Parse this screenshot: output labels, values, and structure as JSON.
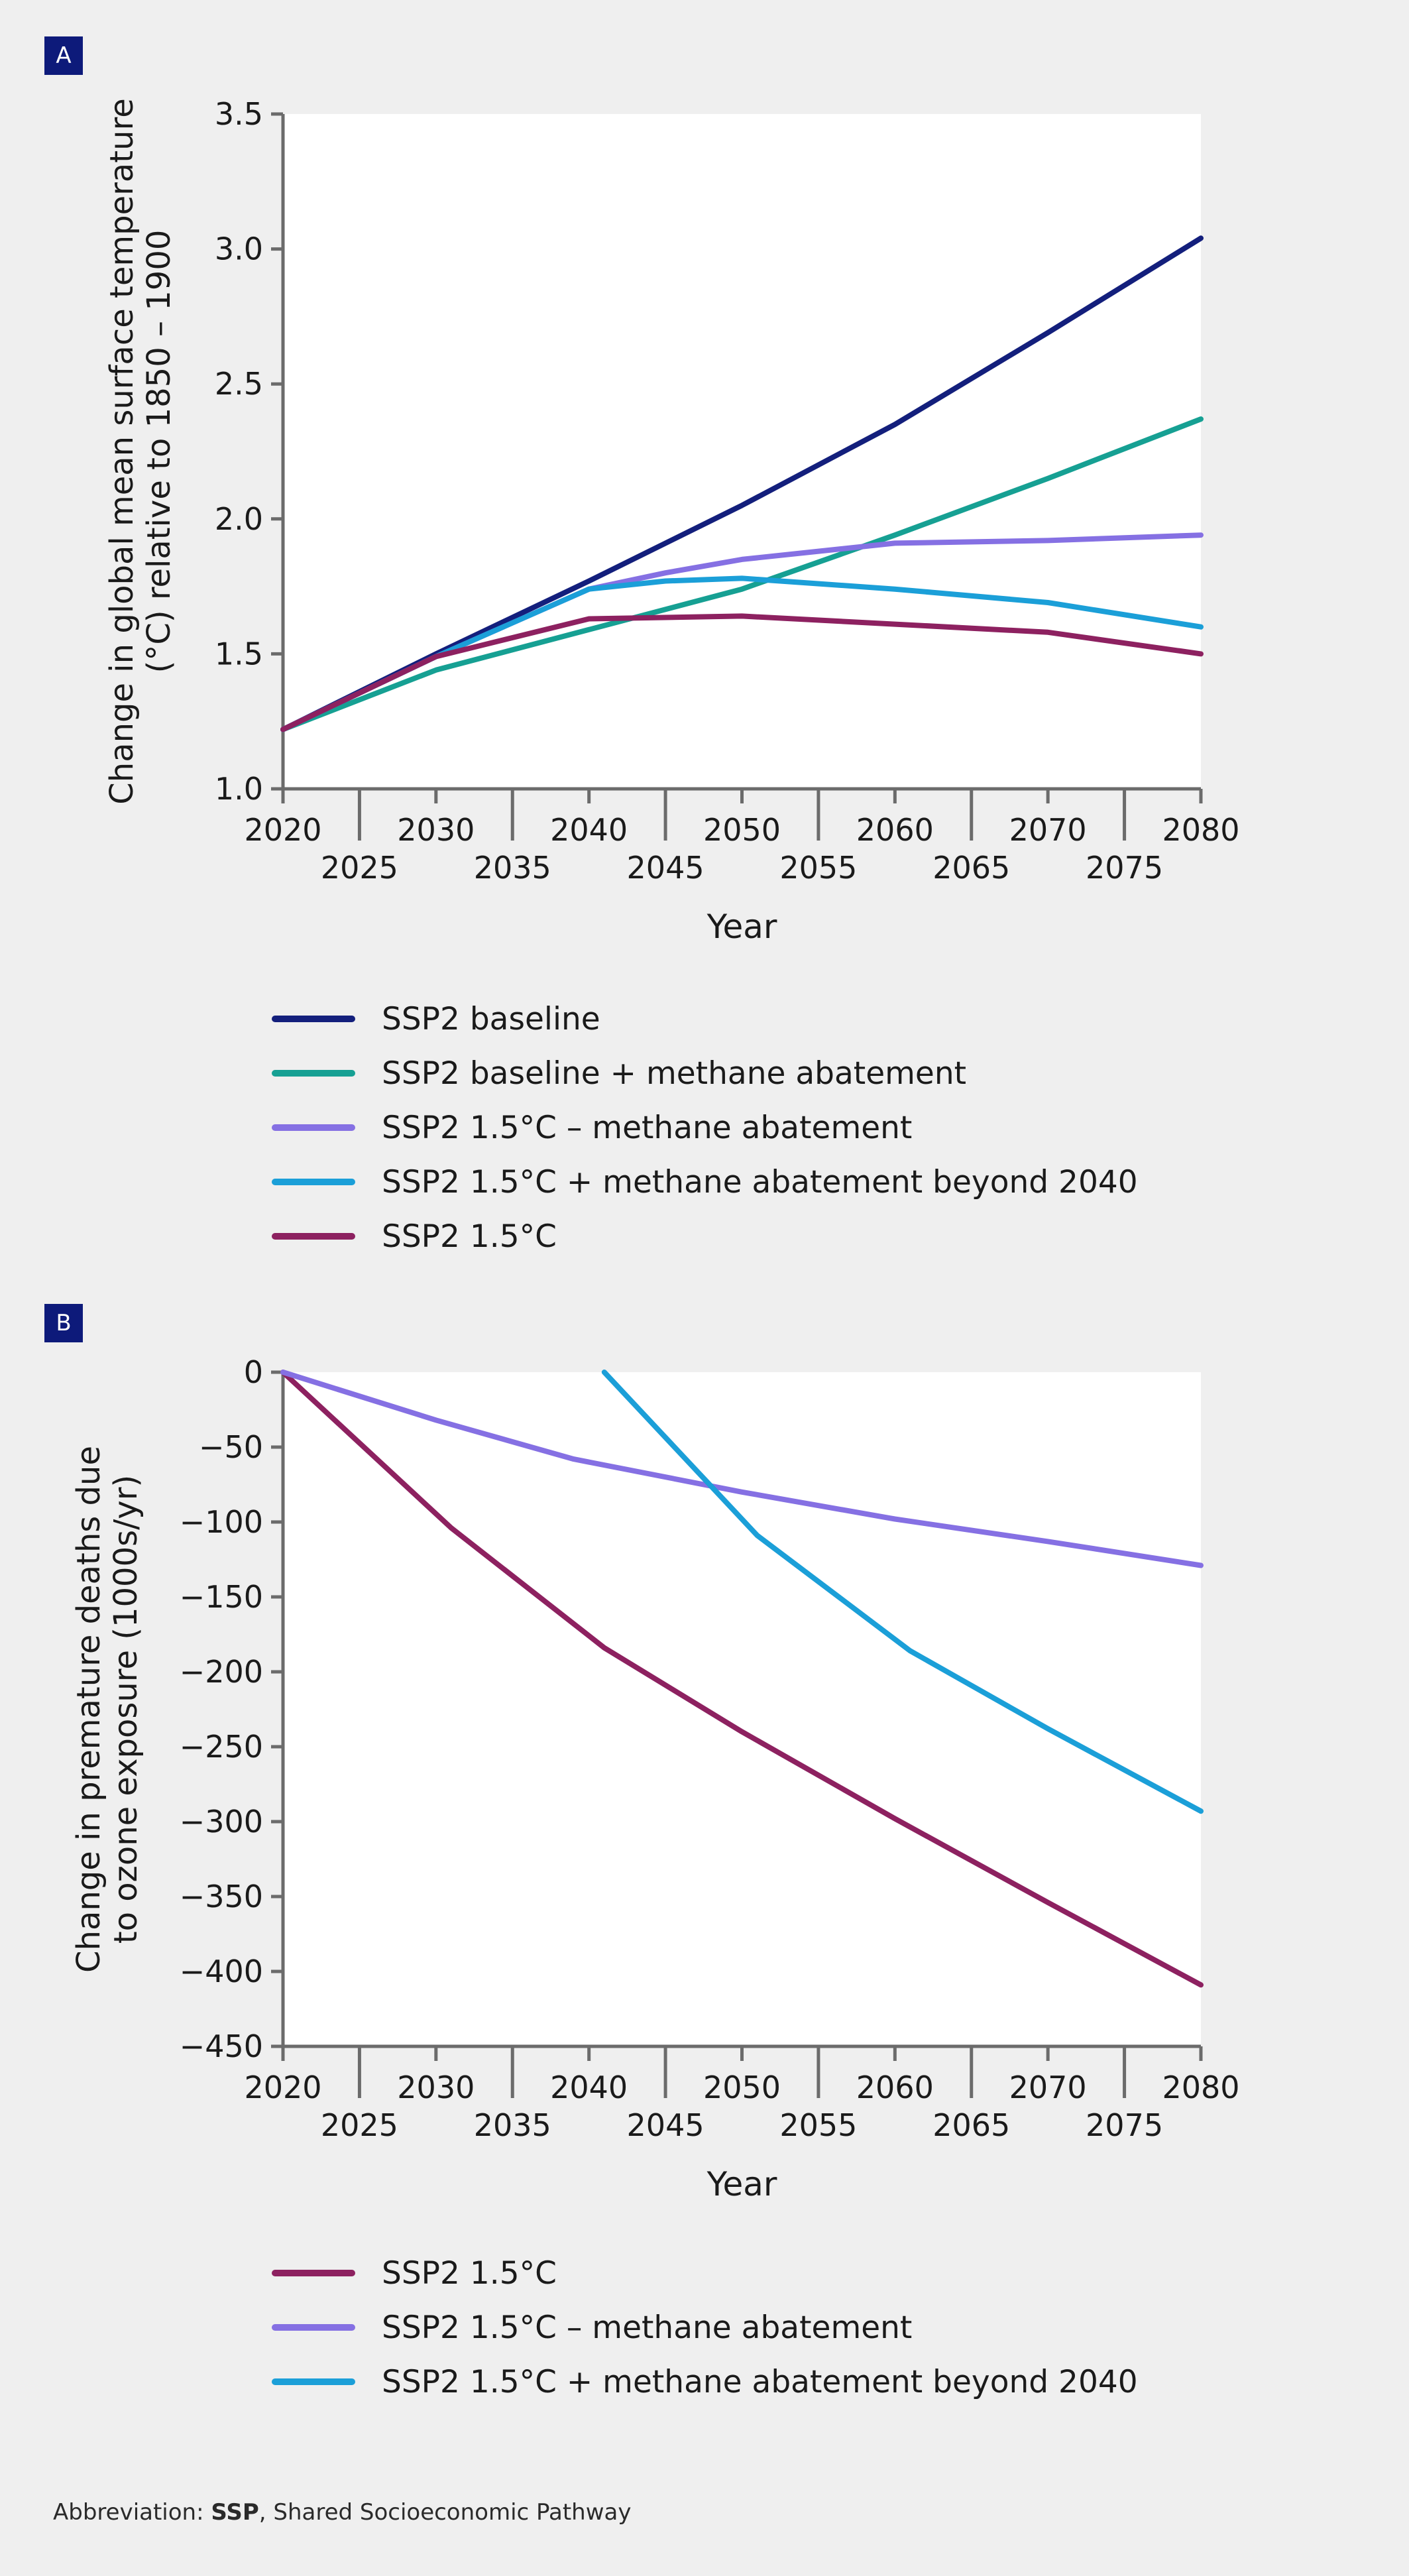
{
  "panels": [
    {
      "badge": "A",
      "chart_data": {
        "type": "line",
        "xlabel": "Year",
        "ylabel_lines": [
          "Change in global mean surface temperature",
          "(°C) relative to 1850 – 1900"
        ],
        "xlim": [
          2020,
          2080
        ],
        "ylim": [
          1.0,
          3.5
        ],
        "xticks_major": [
          2020,
          2030,
          2040,
          2050,
          2060,
          2070,
          2080
        ],
        "xticks_minor": [
          2025,
          2035,
          2045,
          2055,
          2065,
          2075
        ],
        "yticks": [
          1.0,
          1.5,
          2.0,
          2.5,
          3.0,
          3.5
        ],
        "ytick_labels": [
          "1.0",
          "1.5",
          "2.0",
          "2.5",
          "3.0",
          "3.5"
        ],
        "series": [
          {
            "name": "SSP2 baseline",
            "color": "#131f7c",
            "x": [
              2020,
              2030,
              2040,
              2050,
              2060,
              2070,
              2080
            ],
            "y": [
              1.22,
              1.5,
              1.77,
              2.05,
              2.35,
              2.69,
              3.04
            ]
          },
          {
            "name": "SSP2 baseline + methane abatement",
            "color": "#16a093",
            "x": [
              2020,
              2030,
              2040,
              2050,
              2060,
              2070,
              2080
            ],
            "y": [
              1.22,
              1.44,
              1.59,
              1.74,
              1.94,
              2.15,
              2.37
            ]
          },
          {
            "name": "SSP2 1.5°C – methane abatement",
            "color": "#8570e3",
            "x": [
              2020,
              2030,
              2040,
              2045,
              2050,
              2060,
              2070,
              2080
            ],
            "y": [
              1.22,
              1.49,
              1.74,
              1.8,
              1.85,
              1.91,
              1.92,
              1.94
            ]
          },
          {
            "name": "SSP2 1.5°C + methane abatement beyond 2040",
            "color": "#1b9fd8",
            "x": [
              2020,
              2030,
              2040,
              2045,
              2050,
              2060,
              2070,
              2080
            ],
            "y": [
              1.22,
              1.49,
              1.74,
              1.77,
              1.78,
              1.74,
              1.69,
              1.6
            ]
          },
          {
            "name": "SSP2 1.5°C",
            "color": "#8d2160",
            "x": [
              2020,
              2030,
              2040,
              2050,
              2060,
              2070,
              2080
            ],
            "y": [
              1.22,
              1.49,
              1.63,
              1.64,
              1.61,
              1.58,
              1.5
            ]
          }
        ]
      },
      "legend": [
        {
          "label": "SSP2 baseline",
          "color": "#131f7c"
        },
        {
          "label": "SSP2 baseline + methane abatement",
          "color": "#16a093"
        },
        {
          "label": "SSP2 1.5°C – methane abatement",
          "color": "#8570e3"
        },
        {
          "label": "SSP2 1.5°C + methane abatement beyond 2040",
          "color": "#1b9fd8"
        },
        {
          "label": "SSP2 1.5°C",
          "color": "#8d2160"
        }
      ]
    },
    {
      "badge": "B",
      "chart_data": {
        "type": "line",
        "xlabel": "Year",
        "ylabel_lines": [
          "Change in premature deaths due",
          "to ozone exposure (1000s/yr)"
        ],
        "xlim": [
          2020,
          2080
        ],
        "ylim": [
          -450,
          0
        ],
        "xticks_major": [
          2020,
          2030,
          2040,
          2050,
          2060,
          2070,
          2080
        ],
        "xticks_minor": [
          2025,
          2035,
          2045,
          2055,
          2065,
          2075
        ],
        "yticks": [
          0,
          -50,
          -100,
          -150,
          -200,
          -250,
          -300,
          -350,
          -400,
          -450
        ],
        "ytick_labels": [
          "0",
          "−50",
          "−100",
          "−150",
          "−200",
          "−250",
          "−300",
          "−350",
          "−400",
          "−450"
        ],
        "series": [
          {
            "name": "SSP2 1.5°C",
            "color": "#8d2160",
            "x": [
              2020,
              2031,
              2041,
              2050,
              2060,
              2070,
              2080
            ],
            "y": [
              0,
              -104,
              -184,
              -240,
              -298,
              -354,
              -409
            ]
          },
          {
            "name": "SSP2 1.5°C – methane abatement",
            "color": "#8570e3",
            "x": [
              2020,
              2030,
              2039,
              2050,
              2060,
              2070,
              2080
            ],
            "y": [
              0,
              -32,
              -58,
              -80,
              -98,
              -113,
              -129
            ]
          },
          {
            "name": "SSP2 1.5°C + methane abatement beyond 2040",
            "color": "#1b9fd8",
            "x": [
              2041,
              2051,
              2061,
              2070,
              2080
            ],
            "y": [
              0,
              -109,
              -186,
              -238,
              -293
            ]
          }
        ]
      },
      "legend": [
        {
          "label": "SSP2 1.5°C",
          "color": "#8d2160"
        },
        {
          "label": "SSP2 1.5°C – methane abatement",
          "color": "#8570e3"
        },
        {
          "label": "SSP2 1.5°C + methane abatement beyond 2040",
          "color": "#1b9fd8"
        }
      ]
    }
  ],
  "footnote": {
    "prefix": "Abbreviation: ",
    "term": "SSP",
    "definition": ", Shared Socioeconomic Pathway"
  }
}
